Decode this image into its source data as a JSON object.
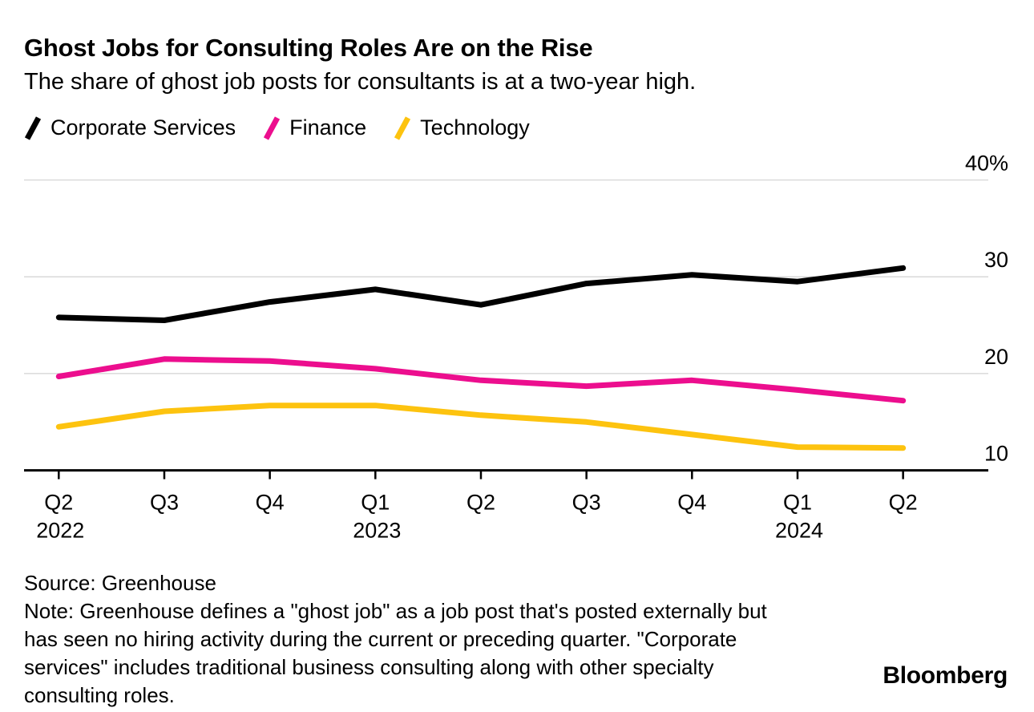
{
  "header": {
    "title": "Ghost Jobs for Consulting Roles Are on the Rise",
    "subtitle": "The share of ghost job posts for consultants is at a two-year high."
  },
  "legend": [
    {
      "label": "Corporate Services",
      "color": "#000000"
    },
    {
      "label": "Finance",
      "color": "#ec0e8e"
    },
    {
      "label": "Technology",
      "color": "#fdc30f"
    }
  ],
  "chart_data": {
    "type": "line",
    "categories": [
      "Q2 2022",
      "Q3 2022",
      "Q4 2022",
      "Q1 2023",
      "Q2 2023",
      "Q3 2023",
      "Q4 2023",
      "Q1 2024",
      "Q2 2024"
    ],
    "x_tick_labels": [
      "Q2",
      "Q3",
      "Q4",
      "Q1",
      "Q2",
      "Q3",
      "Q4",
      "Q1",
      "Q2"
    ],
    "x_year_labels": [
      {
        "index": 0,
        "label": "2022"
      },
      {
        "index": 3,
        "label": "2023"
      },
      {
        "index": 7,
        "label": "2024"
      }
    ],
    "series": [
      {
        "name": "Corporate Services",
        "color": "#000000",
        "values": [
          25.8,
          25.5,
          27.4,
          28.7,
          27.1,
          29.3,
          30.2,
          29.5,
          30.9
        ]
      },
      {
        "name": "Finance",
        "color": "#ec0e8e",
        "values": [
          19.7,
          21.5,
          21.3,
          20.5,
          19.3,
          18.7,
          19.3,
          18.3,
          17.2
        ]
      },
      {
        "name": "Technology",
        "color": "#fdc30f",
        "values": [
          14.5,
          16.1,
          16.7,
          16.7,
          15.7,
          15.0,
          13.7,
          12.4,
          12.3
        ]
      }
    ],
    "unit": "%",
    "ylim": [
      10,
      40
    ],
    "y_ticks": [
      40,
      30,
      20,
      10
    ],
    "y_tick_labels": [
      "40%",
      "30",
      "20",
      "10"
    ],
    "grid": "horizontal",
    "legend_position": "top",
    "baseline_value": 10
  },
  "footer": {
    "lines": [
      "Source: Greenhouse",
      "Note: Greenhouse defines a \"ghost job\" as a job post that's posted externally but",
      "has seen no hiring activity during the current or preceding quarter. \"Corporate",
      "services\" includes traditional business consulting along with other specialty",
      "consulting roles."
    ],
    "brand": "Bloomberg"
  },
  "colors": {
    "gridline": "#d9d9d9",
    "axis": "#000000",
    "text": "#000000"
  }
}
